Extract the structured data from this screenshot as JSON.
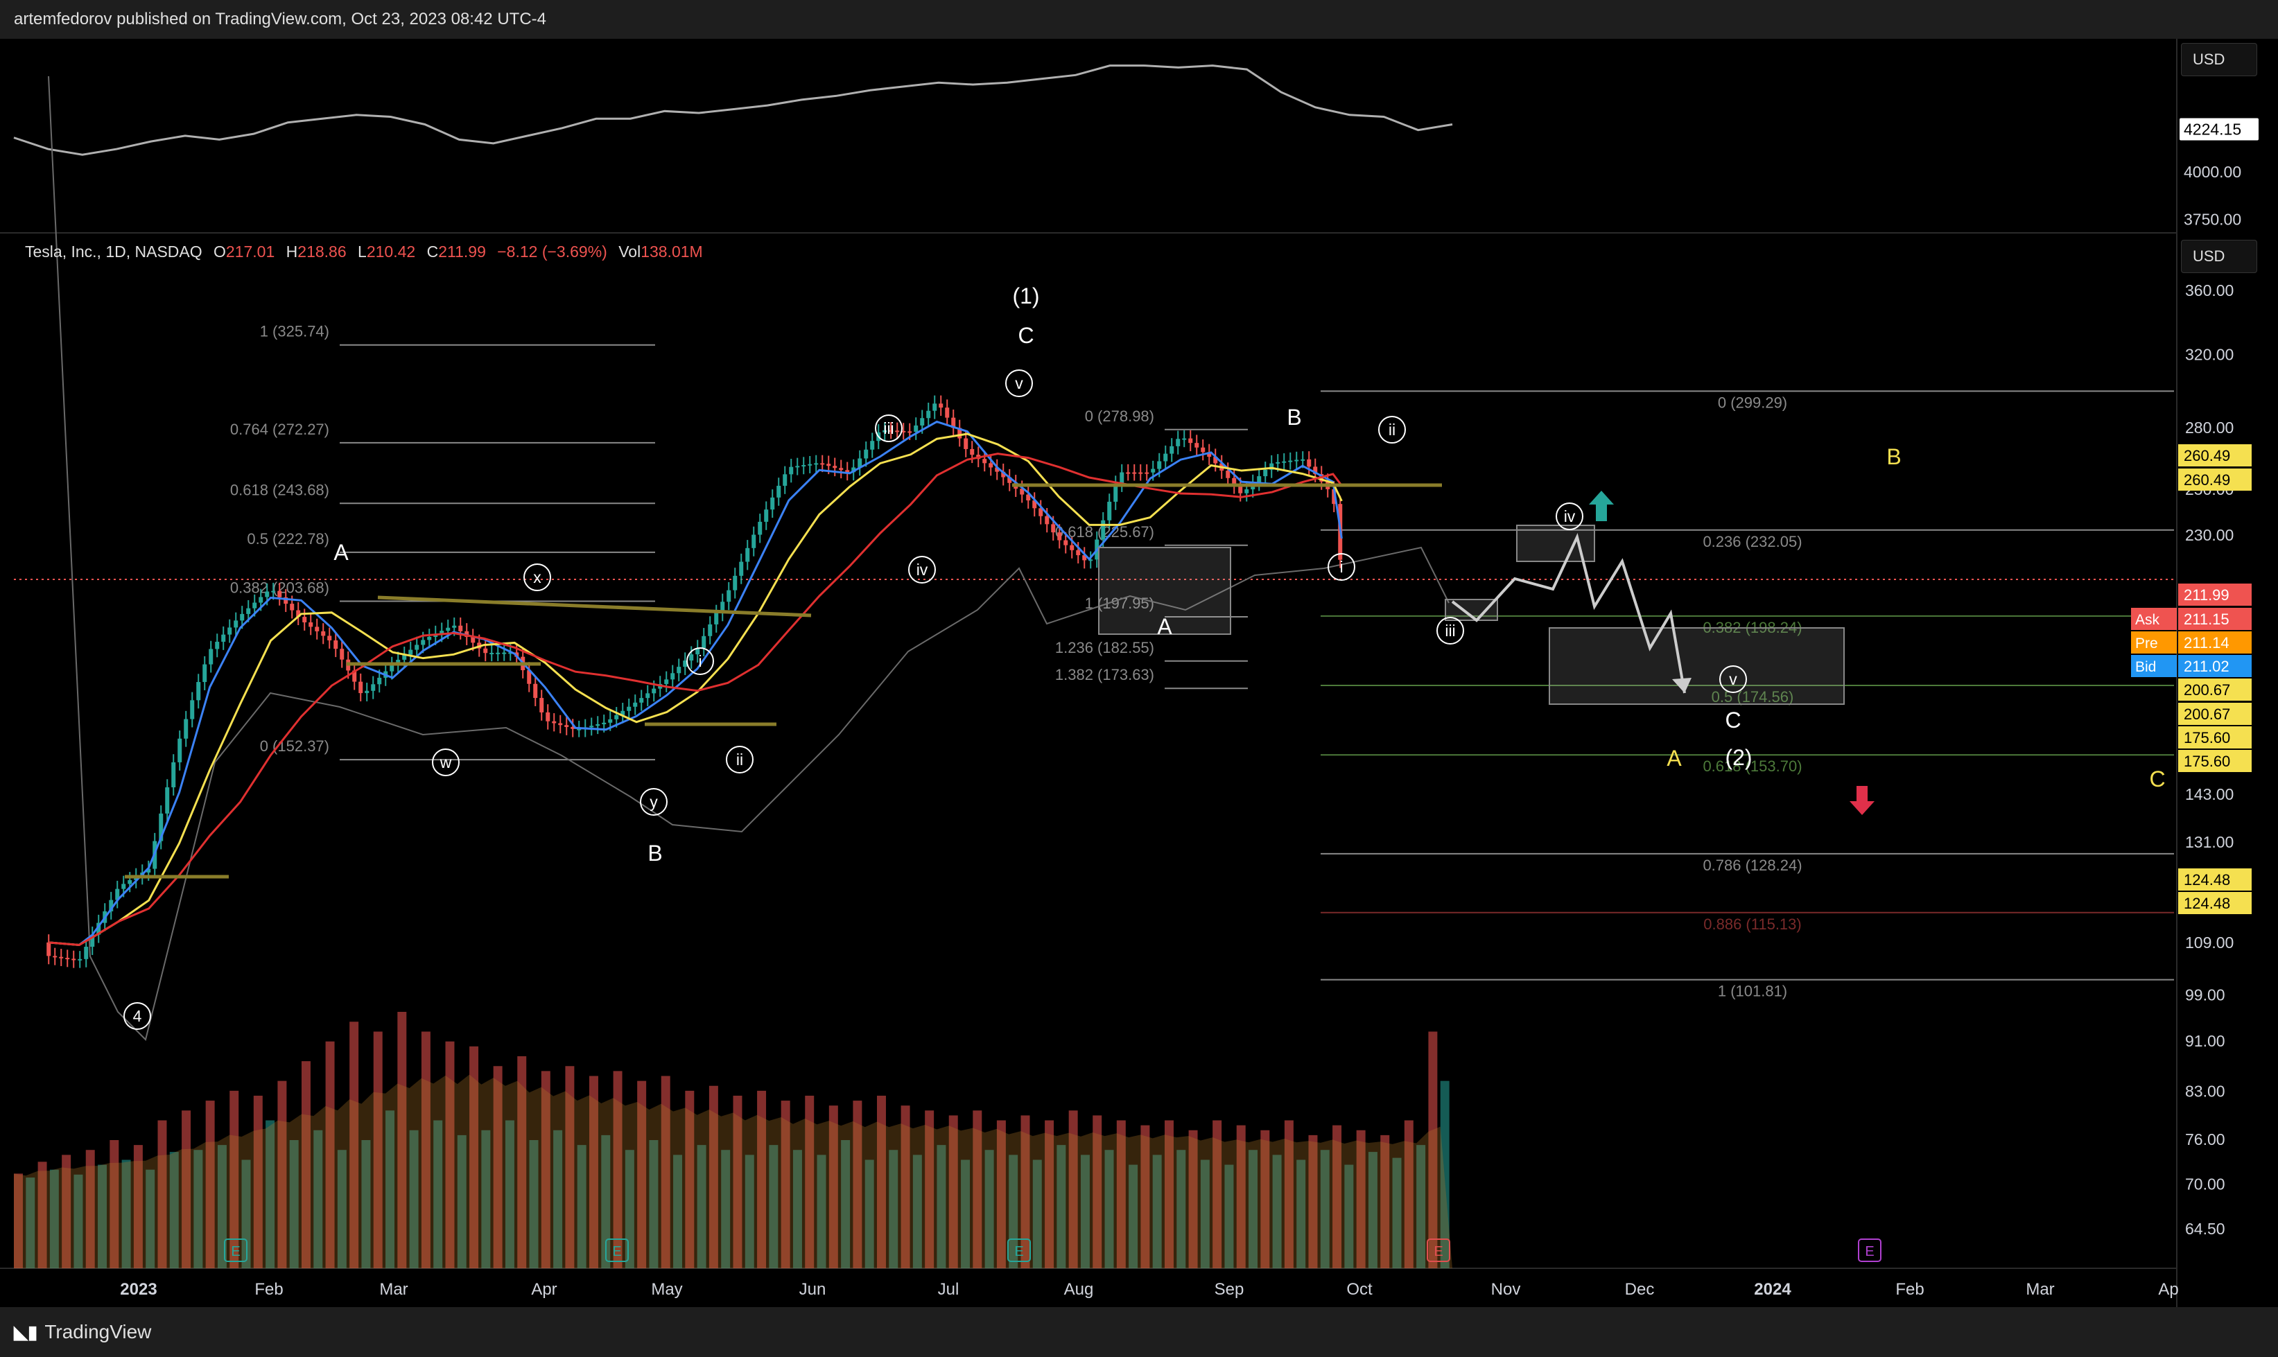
{
  "header": {
    "published": "artemfedorov published on TradingView.com, Oct 23, 2023 08:42 UTC-4"
  },
  "footer": {
    "brand": "TradingView",
    "logo": "tradingview-logo-icon"
  },
  "legend": {
    "symbol": "Tesla, Inc., 1D, NASDAQ",
    "o_label": "O",
    "o": "217.01",
    "h_label": "H",
    "h": "218.86",
    "l_label": "L",
    "l": "210.42",
    "c_label": "C",
    "c": "211.99",
    "change": "−8.12 (−3.69%)",
    "vol_label": "Vol",
    "vol": "138.01M"
  },
  "currency": {
    "top": "USD",
    "main": "USD"
  },
  "colors": {
    "up": "#26a69a",
    "down": "#ef5350",
    "ema_fast": "#3b82f6",
    "ema_mid": "#f5e050",
    "ema_slow": "#e03030",
    "compare": "#b0b0b0",
    "fib_gray": "#8a8a8a",
    "fib_olive": "#9a8a3a",
    "fib_green": "#4d7a3a",
    "fib_red": "#7a2a2a"
  },
  "chart_data": [
    {
      "type": "line",
      "pane": "comparison",
      "yaxis": {
        "labels": [
          "4000.00",
          "3750.00"
        ],
        "current": "4224.15",
        "range": [
          3700,
          4650
        ]
      },
      "series": [
        {
          "values": [
            4180,
            4120,
            4090,
            4120,
            4160,
            4190,
            4170,
            4200,
            4260,
            4280,
            4300,
            4290,
            4250,
            4170,
            4150,
            4190,
            4230,
            4280,
            4280,
            4320,
            4310,
            4330,
            4350,
            4380,
            4400,
            4430,
            4450,
            4470,
            4460,
            4470,
            4490,
            4510,
            4560,
            4560,
            4550,
            4560,
            4540,
            4420,
            4340,
            4300,
            4290,
            4220,
            4250
          ]
        }
      ]
    },
    {
      "type": "candlestick",
      "pane": "price",
      "yaxis": {
        "ticks": [
          "360.00",
          "320.00",
          "280.00",
          "250.00",
          "230.00",
          "143.00",
          "131.00",
          "109.00",
          "99.00",
          "91.00",
          "83.00",
          "76.00",
          "70.00",
          "64.50"
        ],
        "scale": "log",
        "range": [
          60,
          400
        ],
        "price_labels": [
          {
            "label": "",
            "value": "260.49",
            "bg": "#f5e050"
          },
          {
            "label": "",
            "value": "260.49",
            "bg": "#f5e050"
          },
          {
            "label": "",
            "value": "211.99",
            "bg": "#ef5350"
          },
          {
            "label": "Ask",
            "value": "211.15",
            "bg": "#ef5350"
          },
          {
            "label": "Pre",
            "value": "211.14",
            "bg": "#ff9800"
          },
          {
            "label": "Bid",
            "value": "211.02",
            "bg": "#2196f3"
          },
          {
            "label": "",
            "value": "200.67",
            "bg": "#f5e050"
          },
          {
            "label": "",
            "value": "200.67",
            "bg": "#f5e050"
          },
          {
            "label": "",
            "value": "175.60",
            "bg": "#f5e050"
          },
          {
            "label": "",
            "value": "175.60",
            "bg": "#f5e050"
          },
          {
            "label": "",
            "value": "124.48",
            "bg": "#f5e050"
          },
          {
            "label": "",
            "value": "124.48",
            "bg": "#f5e050"
          }
        ]
      },
      "xaxis": {
        "labels": [
          "2023",
          "Feb",
          "Mar",
          "Apr",
          "May",
          "Jun",
          "Jul",
          "Aug",
          "Sep",
          "Oct",
          "Nov",
          "Dec",
          "2024",
          "Feb",
          "Mar",
          "Ap"
        ]
      },
      "close_path": [
        [
          "2022-12-27",
          109
        ],
        [
          "2023-01-03",
          108
        ],
        [
          "2023-01-06",
          113
        ],
        [
          "2023-01-12",
          123
        ],
        [
          "2023-01-19",
          127
        ],
        [
          "2023-01-26",
          160
        ],
        [
          "2023-02-02",
          188
        ],
        [
          "2023-02-09",
          200
        ],
        [
          "2023-02-16",
          210
        ],
        [
          "2023-02-23",
          198
        ],
        [
          "2023-03-02",
          190
        ],
        [
          "2023-03-09",
          172
        ],
        [
          "2023-03-16",
          182
        ],
        [
          "2023-03-23",
          190
        ],
        [
          "2023-03-30",
          195
        ],
        [
          "2023-04-06",
          185
        ],
        [
          "2023-04-13",
          185
        ],
        [
          "2023-04-20",
          163
        ],
        [
          "2023-04-27",
          160
        ],
        [
          "2023-05-04",
          162
        ],
        [
          "2023-05-11",
          168
        ],
        [
          "2023-05-18",
          175
        ],
        [
          "2023-05-25",
          185
        ],
        [
          "2023-06-01",
          205
        ],
        [
          "2023-06-08",
          232
        ],
        [
          "2023-06-15",
          258
        ],
        [
          "2023-06-22",
          260
        ],
        [
          "2023-06-29",
          255
        ],
        [
          "2023-07-06",
          276
        ],
        [
          "2023-07-13",
          275
        ],
        [
          "2023-07-19",
          291
        ],
        [
          "2023-07-26",
          265
        ],
        [
          "2023-08-02",
          255
        ],
        [
          "2023-08-09",
          242
        ],
        [
          "2023-08-16",
          225
        ],
        [
          "2023-08-23",
          215
        ],
        [
          "2023-08-30",
          255
        ],
        [
          "2023-09-06",
          255
        ],
        [
          "2023-09-13",
          273
        ],
        [
          "2023-09-20",
          262
        ],
        [
          "2023-09-27",
          245
        ],
        [
          "2023-10-04",
          260
        ],
        [
          "2023-10-11",
          262
        ],
        [
          "2023-10-18",
          245
        ],
        [
          "2023-10-20",
          212
        ]
      ],
      "moving_averages": [
        "blue",
        "yellow",
        "red"
      ],
      "fib_levels_left": [
        {
          "label": "1 (325.74)",
          "value": 325.74
        },
        {
          "label": "0.764 (272.27)",
          "value": 272.27
        },
        {
          "label": "0.618 (243.68)",
          "value": 243.68
        },
        {
          "label": "0.5 (222.78)",
          "value": 222.78
        },
        {
          "label": "0.382 (203.68)",
          "value": 203.68
        },
        {
          "label": "0 (152.37)",
          "value": 152.37
        }
      ],
      "fib_levels_mid": [
        {
          "label": "0 (278.98)",
          "value": 278.98
        },
        {
          "label": "0.618 (225.67)",
          "value": 225.67
        },
        {
          "label": "1 (197.95)",
          "value": 197.95
        },
        {
          "label": "1.236 (182.55)",
          "value": 182.55
        },
        {
          "label": "1.382 (173.63)",
          "value": 173.63
        }
      ],
      "fib_levels_right": [
        {
          "label": "0 (299.29)",
          "value": 299.29
        },
        {
          "label": "0.236 (232.05)",
          "value": 232.05
        },
        {
          "label": "0.382 (198.24)",
          "value": 198.24
        },
        {
          "label": "0.5 (174.56)",
          "value": 174.56
        },
        {
          "label": "0.618 (153.70)",
          "value": 153.7
        },
        {
          "label": "0.786 (128.24)",
          "value": 128.24
        },
        {
          "label": "0.886 (115.13)",
          "value": 115.13
        },
        {
          "label": "1 (101.81)",
          "value": 101.81
        }
      ],
      "wave_labels": [
        {
          "text": "(1)",
          "style": "plain"
        },
        {
          "text": "C",
          "style": "plain"
        },
        {
          "text": "v",
          "style": "circle"
        },
        {
          "text": "iii",
          "style": "circle"
        },
        {
          "text": "iv",
          "style": "circle"
        },
        {
          "text": "A",
          "style": "plain"
        },
        {
          "text": "x",
          "style": "circle"
        },
        {
          "text": "w",
          "style": "circle"
        },
        {
          "text": "y",
          "style": "circle"
        },
        {
          "text": "B",
          "style": "plain"
        },
        {
          "text": "i",
          "style": "circle"
        },
        {
          "text": "ii",
          "style": "circle"
        },
        {
          "text": "4",
          "style": "circle"
        },
        {
          "text": "A",
          "style": "plain"
        },
        {
          "text": "B",
          "style": "plain"
        },
        {
          "text": "ii",
          "style": "circle"
        },
        {
          "text": "i",
          "style": "circle"
        },
        {
          "text": "iii",
          "style": "circle"
        },
        {
          "text": "iv",
          "style": "circle"
        },
        {
          "text": "v",
          "style": "circle"
        },
        {
          "text": "C",
          "style": "plain"
        },
        {
          "text": "(2)",
          "style": "plain"
        },
        {
          "text": "A",
          "style": "yellow"
        },
        {
          "text": "B",
          "style": "yellow"
        },
        {
          "text": "C",
          "style": "yellow"
        }
      ],
      "event_markers": [
        "E",
        "E",
        "E",
        "E",
        "E"
      ]
    },
    {
      "type": "bar",
      "pane": "volume",
      "values": [
        96,
        92,
        108,
        100,
        115,
        95,
        120,
        105,
        130,
        110,
        125,
        100,
        150,
        118,
        160,
        120,
        170,
        125,
        180,
        110,
        175,
        150,
        190,
        130,
        210,
        140,
        230,
        120,
        250,
        130,
        240,
        160,
        260,
        140,
        240,
        150,
        230,
        135,
        225,
        140,
        205,
        150,
        215,
        130,
        200,
        140,
        205,
        125,
        195,
        135,
        200,
        120,
        190,
        130,
        195,
        115,
        180,
        125,
        185,
        120,
        175,
        115,
        180,
        125,
        170,
        120,
        175,
        115,
        165,
        130,
        170,
        110,
        175,
        120,
        165,
        115,
        160,
        125,
        155,
        110,
        160,
        120,
        150,
        115,
        155,
        110,
        150,
        125,
        160,
        115,
        155,
        120,
        150,
        105,
        145,
        115,
        150,
        120,
        140,
        110,
        150,
        105,
        145,
        120,
        140,
        115,
        150,
        110,
        135,
        120,
        145,
        105,
        140,
        118,
        135,
        112,
        150,
        125,
        240,
        190
      ]
    }
  ]
}
